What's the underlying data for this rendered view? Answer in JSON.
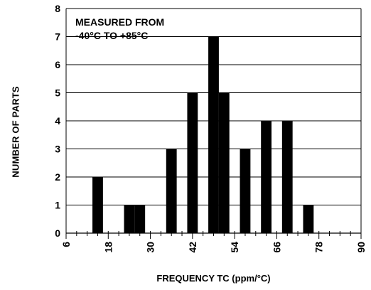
{
  "chart_data": {
    "type": "bar",
    "xlabel": "FREQUENCY TC (ppm/°C)",
    "ylabel": "NUMBER OF PARTS",
    "annotation_lines": [
      "MEASURED FROM",
      "-40°C TO +85°C"
    ],
    "x_tick_labels": [
      "6",
      "18",
      "30",
      "42",
      "54",
      "66",
      "78",
      "90"
    ],
    "x_tick_values": [
      6,
      18,
      30,
      42,
      54,
      66,
      78,
      90
    ],
    "xlim": [
      6,
      90
    ],
    "ylim": [
      0,
      8
    ],
    "y_ticks": [
      0,
      1,
      2,
      3,
      4,
      5,
      6,
      7,
      8
    ],
    "grid": "horizontal",
    "bar_color": "#000000",
    "bars": [
      {
        "x": 15,
        "value": 2
      },
      {
        "x": 24,
        "value": 1
      },
      {
        "x": 27,
        "value": 1
      },
      {
        "x": 36,
        "value": 3
      },
      {
        "x": 42,
        "value": 5
      },
      {
        "x": 48,
        "value": 7
      },
      {
        "x": 51,
        "value": 5
      },
      {
        "x": 57,
        "value": 3
      },
      {
        "x": 63,
        "value": 4
      },
      {
        "x": 69,
        "value": 4
      },
      {
        "x": 75,
        "value": 1
      }
    ]
  }
}
